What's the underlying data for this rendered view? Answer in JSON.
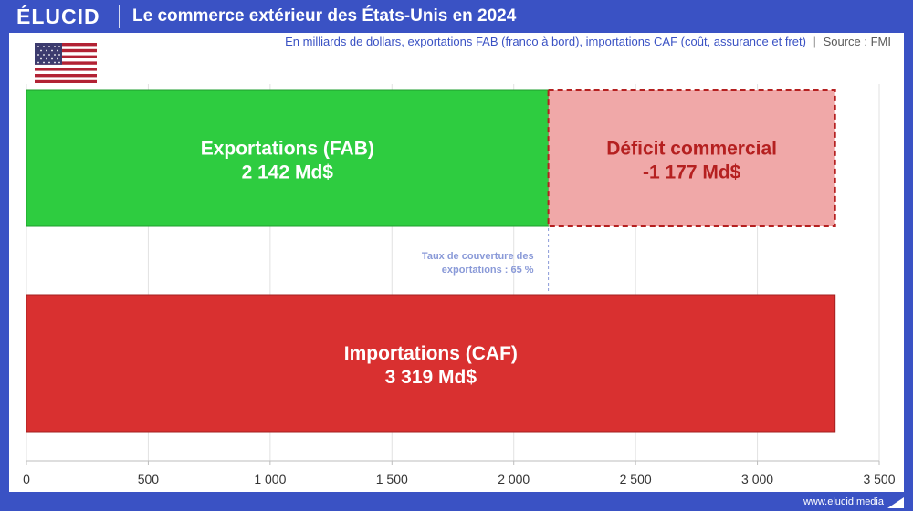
{
  "brand": {
    "logo_text": "ÉLUCID",
    "footer_url": "www.elucid.media"
  },
  "header": {
    "title": "Le commerce extérieur des États-Unis en 2024"
  },
  "subtitle": {
    "text": "En milliards de dollars, exportations FAB (franco à bord), importations CAF (coût, assurance et fret)",
    "separator": "|",
    "source": "Source : FMI"
  },
  "flag": {
    "icon": "us-flag-icon"
  },
  "colors": {
    "header_bg": "#3a52c4",
    "exports": "#2ecc40",
    "imports": "#d93030",
    "deficit_fill": "#f0a8a8",
    "deficit_border": "#b52020",
    "deficit_text": "#b52020",
    "annotation": "#8a9ad8"
  },
  "chart_data": {
    "type": "bar",
    "orientation": "horizontal",
    "xlim": [
      0,
      3500
    ],
    "ticks": [
      0,
      500,
      1000,
      1500,
      2000,
      2500,
      3000,
      3500
    ],
    "tick_labels": [
      "0",
      "500",
      "1 000",
      "1 500",
      "2 000",
      "2 500",
      "3 000",
      "3 500"
    ],
    "grid": true,
    "bars": [
      {
        "name": "exports",
        "label": "Exportations (FAB)",
        "value_label": "2 142 Md$",
        "start": 0,
        "end": 2142
      },
      {
        "name": "deficit",
        "label": "Déficit commercial",
        "value_label": "-1 177 Md$",
        "start": 2142,
        "end": 3319
      },
      {
        "name": "imports",
        "label": "Importations (CAF)",
        "value_label": "3 319 Md$",
        "start": 0,
        "end": 3319
      }
    ],
    "annotation": {
      "line1": "Taux de couverture des",
      "line2": "exportations : 65 %",
      "x": 2142
    }
  }
}
